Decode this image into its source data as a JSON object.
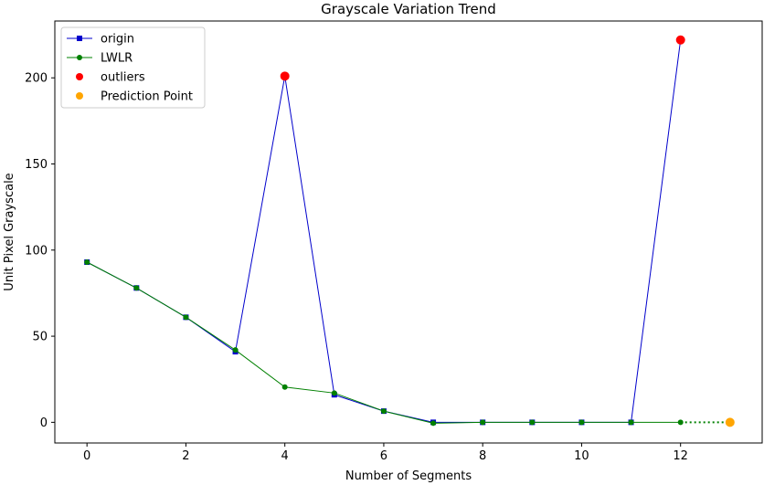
{
  "chart_data": {
    "type": "line",
    "title": "Grayscale Variation Trend",
    "xlabel": "Number of Segments",
    "ylabel": "Unit Pixel Grayscale",
    "xlim": [
      -0.65,
      13.65
    ],
    "ylim": [
      -12,
      233
    ],
    "xticks": [
      0,
      2,
      4,
      6,
      8,
      10,
      12
    ],
    "yticks": [
      0,
      50,
      100,
      150,
      200
    ],
    "grid": false,
    "legend_position": "top-left",
    "series": [
      {
        "name": "origin",
        "color": "#0000cc",
        "marker": "square",
        "x": [
          0,
          1,
          2,
          3,
          4,
          5,
          6,
          7,
          8,
          9,
          10,
          11,
          12
        ],
        "y": [
          93,
          78,
          61,
          41,
          201,
          16,
          6.5,
          0,
          0,
          0,
          0,
          0,
          222
        ]
      },
      {
        "name": "LWLR",
        "color": "#008000",
        "marker": "circle",
        "x": [
          0,
          1,
          2,
          3,
          4,
          5,
          6,
          7,
          8,
          9,
          10,
          11,
          12
        ],
        "y": [
          93,
          78,
          61,
          42,
          20.5,
          17,
          6.5,
          -0.5,
          0,
          0,
          0,
          0,
          0
        ]
      },
      {
        "name": "outliers",
        "color": "#ff0000",
        "marker": "circle",
        "x": [
          4,
          12
        ],
        "y": [
          201,
          222
        ]
      },
      {
        "name": "Prediction Point",
        "color": "#ffa500",
        "marker": "circle",
        "x": [
          13
        ],
        "y": [
          0
        ]
      }
    ],
    "prediction_line": {
      "color": "#008000",
      "style": "dotted",
      "x": [
        12,
        13
      ],
      "y": [
        0,
        0
      ]
    }
  }
}
